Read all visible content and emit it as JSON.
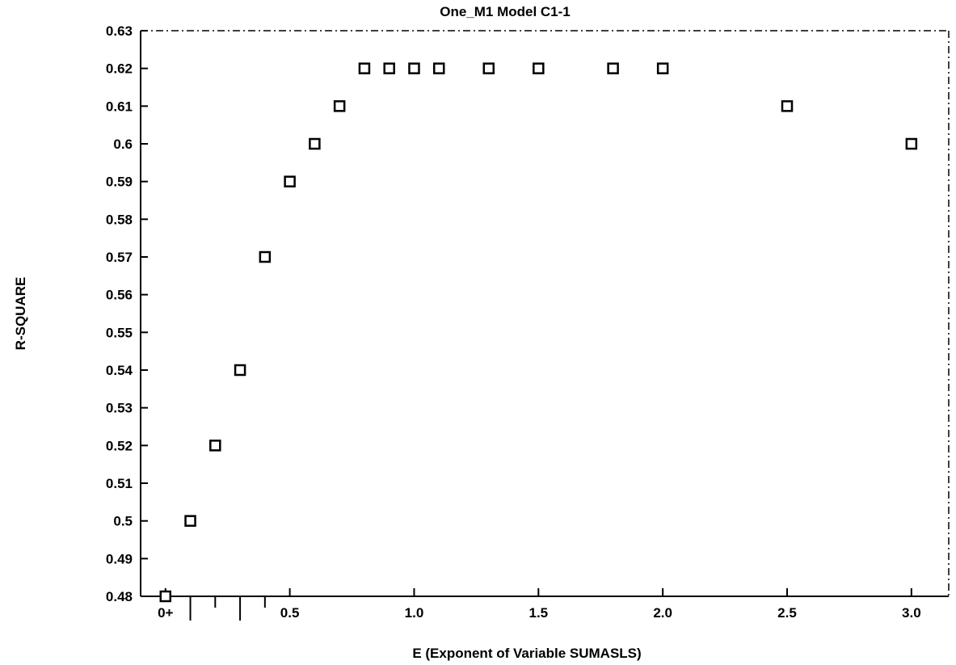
{
  "chart_data": {
    "type": "scatter",
    "title": "One_M1 Model C1-1",
    "xlabel": "E (Exponent of Variable SUMASLS)",
    "ylabel": "R-SQUARE",
    "xlim": [
      -0.1,
      3.15
    ],
    "ylim": [
      0.48,
      0.63
    ],
    "grid": false,
    "legend": "none",
    "marker": "open-square",
    "y_ticks": [
      "0.48",
      "0.49",
      "0.5",
      "0.51",
      "0.52",
      "0.53",
      "0.54",
      "0.55",
      "0.56",
      "0.57",
      "0.58",
      "0.59",
      "0.6",
      "0.61",
      "0.62",
      "0.63"
    ],
    "x_tick_labels": [
      {
        "value": 0.0,
        "label": "0+"
      },
      {
        "value": 0.5,
        "label": "0.5"
      },
      {
        "value": 1.0,
        "label": "1.0"
      },
      {
        "value": 1.5,
        "label": "1.5"
      },
      {
        "value": 2.0,
        "label": "2.0"
      },
      {
        "value": 2.5,
        "label": "2.5"
      },
      {
        "value": 3.0,
        "label": "3.0"
      }
    ],
    "x_minor_ticks": [
      0.1,
      0.2,
      0.3,
      0.4
    ],
    "points": [
      {
        "x": 0.0,
        "y": 0.48
      },
      {
        "x": 0.1,
        "y": 0.5
      },
      {
        "x": 0.2,
        "y": 0.52
      },
      {
        "x": 0.3,
        "y": 0.54
      },
      {
        "x": 0.4,
        "y": 0.57
      },
      {
        "x": 0.5,
        "y": 0.59
      },
      {
        "x": 0.6,
        "y": 0.6
      },
      {
        "x": 0.7,
        "y": 0.61
      },
      {
        "x": 0.8,
        "y": 0.62
      },
      {
        "x": 0.9,
        "y": 0.62
      },
      {
        "x": 1.0,
        "y": 0.62
      },
      {
        "x": 1.1,
        "y": 0.62
      },
      {
        "x": 1.3,
        "y": 0.62
      },
      {
        "x": 1.5,
        "y": 0.62
      },
      {
        "x": 1.8,
        "y": 0.62
      },
      {
        "x": 2.0,
        "y": 0.62
      },
      {
        "x": 2.5,
        "y": 0.61
      },
      {
        "x": 3.0,
        "y": 0.6
      }
    ]
  }
}
